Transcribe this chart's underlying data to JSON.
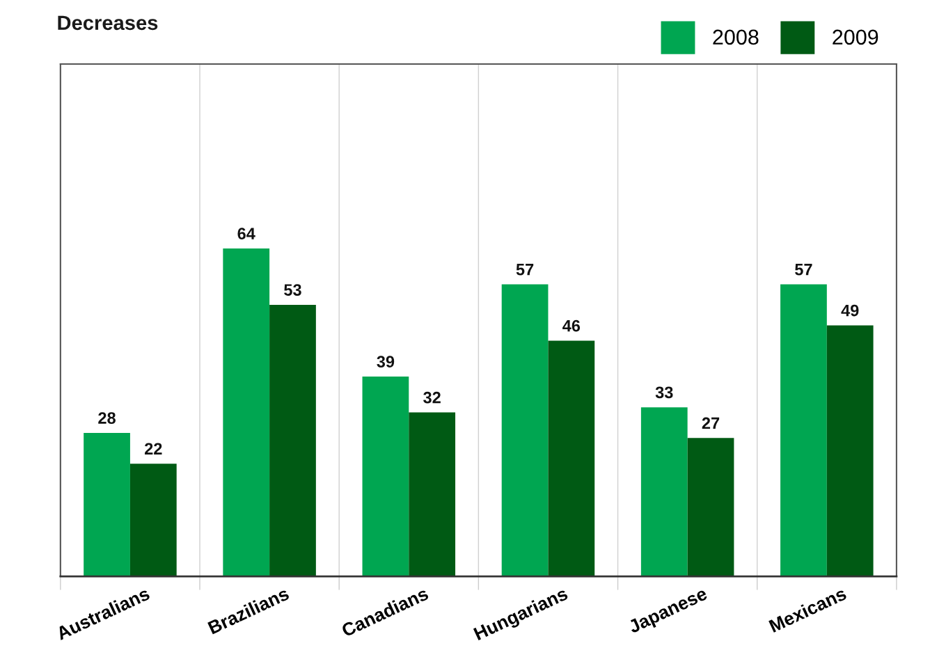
{
  "chart_data": {
    "type": "bar",
    "title": "Decreases",
    "categories": [
      "Australians",
      "Brazilians",
      "Canadians",
      "Hungarians",
      "Japanese",
      "Mexicans"
    ],
    "series": [
      {
        "name": "2008",
        "color": "#00a651",
        "values": [
          28,
          64,
          39,
          57,
          33,
          57
        ]
      },
      {
        "name": "2009",
        "color": "#005a14",
        "values": [
          22,
          53,
          32,
          46,
          27,
          49
        ]
      }
    ],
    "ylim": [
      0,
      100
    ],
    "data_labels": true,
    "grid": "x",
    "legend": "top right",
    "tick_labels": "x"
  }
}
